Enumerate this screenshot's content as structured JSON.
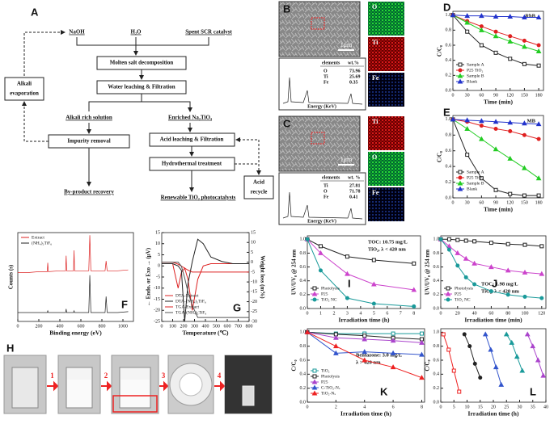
{
  "flowchart": {
    "label": "A",
    "inputs": [
      "NaOH",
      "H₂O",
      "Spent SCR catalyst"
    ],
    "steps": [
      "Molten salt decomposition",
      "Water leaching & Filtration"
    ],
    "branches": [
      "Alkali rich solution",
      "Enriched Na₂TiO₃"
    ],
    "left_steps": [
      "Impurity removal"
    ],
    "right_steps": [
      "Acid leaching & Filtration",
      "Hydrothermal treatment"
    ],
    "outputs": [
      "By-product recovery",
      "Renewable TiO₂ photocatalysts"
    ],
    "alkali_side": [
      "Alkali",
      "evaporation"
    ],
    "acid_side": [
      "Acid",
      "recycle"
    ]
  },
  "eds": [
    {
      "label": "B",
      "maps": [
        "O",
        "Ti",
        "Fe"
      ],
      "scale": "1μm",
      "header": [
        "elements",
        "wt.%"
      ],
      "rows": [
        [
          "O",
          "73.96"
        ],
        [
          "Ti",
          "25.69"
        ],
        [
          "Fe",
          "0.35"
        ]
      ],
      "axis_label": "Energy (KeV)"
    },
    {
      "label": "C",
      "maps": [
        "Ti",
        "O",
        "Fe"
      ],
      "scale": "1μm",
      "header": [
        "elements",
        "wt. %"
      ],
      "rows": [
        [
          "Ti",
          "27.81"
        ],
        [
          "O",
          "71.78"
        ],
        [
          "Fe",
          "0.41"
        ]
      ],
      "axis_label": "Energy (KeV)"
    }
  ],
  "process": {
    "label": "H",
    "steps": [
      "1",
      "2",
      "3",
      "4"
    ]
  },
  "chart_data": [
    {
      "type": "line",
      "panel": "D",
      "annotations": [
        "RhB"
      ],
      "x": [
        0,
        30,
        60,
        90,
        120,
        150,
        180
      ],
      "xlim": [
        0,
        190
      ],
      "xticks": [
        0,
        30,
        60,
        90,
        120,
        150,
        180
      ],
      "xlabel": "Time (min)",
      "ylabel": "C/C₀",
      "ylim": [
        0,
        1.05
      ],
      "yticks": [
        {
          "value": 0,
          "label": "0.0"
        },
        {
          "value": 0.2,
          "label": "0.2"
        },
        {
          "value": 0.4,
          "label": "0.4"
        },
        {
          "value": 0.6,
          "label": "0.6"
        },
        {
          "value": 0.8,
          "label": "0.8"
        },
        {
          "value": 1,
          "label": "1.0"
        }
      ],
      "legend": "lower-left",
      "series": [
        {
          "name": "Sample A",
          "color": "#222222",
          "marker": "square",
          "values": [
            1,
            0.78,
            0.6,
            0.5,
            0.42,
            0.35,
            0.33
          ]
        },
        {
          "name": "P25 TiO₂",
          "color": "#e02020",
          "marker": "circle",
          "values": [
            1,
            0.92,
            0.85,
            0.78,
            0.72,
            0.66,
            0.6
          ]
        },
        {
          "name": "Sample B",
          "color": "#22cc22",
          "marker": "triangle",
          "values": [
            1,
            0.9,
            0.8,
            0.72,
            0.65,
            0.58,
            0.52
          ]
        },
        {
          "name": "Blank",
          "color": "#2233cc",
          "marker": "triangle",
          "values": [
            1,
            0.99,
            0.99,
            0.98,
            0.98,
            0.97,
            0.97
          ]
        }
      ]
    },
    {
      "type": "line",
      "panel": "E",
      "annotations": [
        "MB"
      ],
      "x": [
        0,
        30,
        60,
        90,
        120,
        150,
        180
      ],
      "xlim": [
        0,
        190
      ],
      "xticks": [
        0,
        30,
        60,
        90,
        120,
        150,
        180
      ],
      "xlabel": "Time (min)",
      "ylabel": "C/C₀",
      "ylim": [
        0,
        1.05
      ],
      "yticks": [
        {
          "value": 0,
          "label": "0.0"
        },
        {
          "value": 0.2,
          "label": "0.2"
        },
        {
          "value": 0.4,
          "label": "0.4"
        },
        {
          "value": 0.6,
          "label": "0.6"
        },
        {
          "value": 0.8,
          "label": "0.8"
        },
        {
          "value": 1,
          "label": "1.0"
        }
      ],
      "legend": "lower-left",
      "series": [
        {
          "name": "Sample A",
          "color": "#222222",
          "marker": "square",
          "values": [
            1,
            0.55,
            0.25,
            0.1,
            0.05,
            0.03,
            0.03
          ]
        },
        {
          "name": "P25 TiO₂",
          "color": "#e02020",
          "marker": "circle",
          "values": [
            1,
            0.97,
            0.92,
            0.88,
            0.85,
            0.8,
            0.75
          ]
        },
        {
          "name": "Sample B",
          "color": "#22cc22",
          "marker": "triangle",
          "values": [
            1,
            0.88,
            0.75,
            0.62,
            0.5,
            0.38,
            0.25
          ]
        },
        {
          "name": "Blank",
          "color": "#2233cc",
          "marker": "triangle",
          "values": [
            1,
            0.99,
            0.98,
            0.97,
            0.96,
            0.95,
            0.94
          ]
        }
      ]
    },
    {
      "type": "line",
      "panel": "F",
      "annotations": [],
      "x": [
        0,
        100,
        200,
        280,
        285,
        290,
        400,
        455,
        460,
        465,
        530,
        535,
        540,
        600,
        675,
        685,
        695,
        800,
        830,
        840,
        850,
        950,
        1050
      ],
      "xlim": [
        0,
        1100
      ],
      "xticks": [
        0,
        200,
        400,
        600,
        800,
        1000
      ],
      "xlabel": "Binding energy (eV)",
      "ylabel": "Counts (s)",
      "ylim": [
        0,
        100
      ],
      "yticks": [],
      "legend": "upper-left",
      "series": [
        {
          "name": "Extract",
          "color": "#dd2222",
          "values": [
            55,
            55,
            56,
            56,
            66,
            56,
            57,
            57,
            74,
            57,
            57,
            80,
            57,
            57,
            57,
            97,
            57,
            57,
            57,
            68,
            57,
            57,
            58
          ]
        },
        {
          "name": "(NH₄)₂TiF₆",
          "color": "#222222",
          "values": [
            10,
            10,
            10,
            10,
            12,
            10,
            10,
            10,
            14,
            10,
            10,
            12,
            10,
            10,
            10,
            52,
            10,
            10,
            10,
            28,
            10,
            10,
            11
          ]
        }
      ]
    },
    {
      "type": "line",
      "panel": "G",
      "annotations": [],
      "x": [
        0,
        100,
        150,
        180,
        210,
        240,
        280,
        330,
        380,
        450,
        550,
        650,
        800
      ],
      "xlim": [
        0,
        800
      ],
      "xticks": [
        0,
        100,
        200,
        300,
        400,
        500,
        600,
        700,
        800
      ],
      "xlabel": "Temperature (℃)",
      "ylabel": "← Endo. or Exo → (μV)",
      "ylim": [
        -25,
        15
      ],
      "yticks": [
        -25,
        -20,
        -15,
        -10,
        -5,
        0,
        5,
        10,
        15
      ],
      "y2label": "Weight loss (m%)",
      "y2lim": [
        -30,
        15
      ],
      "y2ticks": [
        -30,
        -25,
        -20,
        -15,
        -10,
        -5,
        0,
        5,
        10,
        15
      ],
      "legend": "lower-left",
      "series": [
        {
          "name": "DTA-Extract",
          "color": "#dd2222",
          "values": [
            1,
            1,
            -10,
            -3,
            -1,
            -6,
            -20,
            -6,
            0,
            1,
            1,
            1,
            1
          ]
        },
        {
          "name": "DTA-(NH₄)₂TiF₆",
          "color": "#222222",
          "values": [
            1,
            1,
            0,
            -2,
            -25,
            -8,
            2,
            12,
            10,
            4,
            2,
            1,
            1
          ]
        },
        {
          "name": "TGA-Extract",
          "color": "#dd2222",
          "axis": "y2",
          "values": [
            0,
            0,
            -1,
            -2,
            -3,
            -4,
            -5,
            -5,
            -5,
            -5,
            -5,
            -5,
            -5
          ]
        },
        {
          "name": "TGA-(NH₄)₂TiF₆",
          "color": "#555555",
          "axis": "y2",
          "values": [
            0,
            0,
            0,
            -2,
            -8,
            -15,
            -22,
            -28,
            -28,
            -28,
            -28,
            -28,
            -28
          ]
        }
      ]
    },
    {
      "type": "line",
      "panel": "I",
      "annotations": [
        "TOC: 10.75 mg/L",
        "TiO₂, λ < 420 nm"
      ],
      "x": [
        0,
        1,
        3,
        5,
        8
      ],
      "xlim": [
        0,
        8.5
      ],
      "xticks": [
        0,
        1,
        2,
        3,
        4,
        5,
        6,
        7,
        8
      ],
      "xlabel": "Irradiation time (h)",
      "ylabel": "UV/UV₀ @ 254 nm",
      "ylim": [
        0,
        1.05
      ],
      "yticks": [
        {
          "value": 0,
          "label": "0.0"
        },
        {
          "value": 0.2,
          "label": "0.2"
        },
        {
          "value": 0.4,
          "label": "0.4"
        },
        {
          "value": 0.6,
          "label": "0.6"
        },
        {
          "value": 0.8,
          "label": "0.8"
        },
        {
          "value": 1,
          "label": "1.0"
        }
      ],
      "legend": "lower-left",
      "series": [
        {
          "name": "Photolysis",
          "color": "#222222",
          "marker": "square",
          "values": [
            1,
            0.9,
            0.75,
            0.7,
            0.65
          ]
        },
        {
          "name": "P25",
          "color": "#cc44cc",
          "marker": "triangle",
          "values": [
            1,
            0.8,
            0.5,
            0.35,
            0.27
          ]
        },
        {
          "name": "TiO₂ NC",
          "color": "#1a9a9a",
          "marker": "circle",
          "values": [
            1,
            0.55,
            0.15,
            0.07,
            0.03
          ]
        }
      ]
    },
    {
      "type": "line",
      "panel": "J",
      "annotations": [
        "TOC: 1.98 mg/L",
        "TiO₂, λ < 420 nm"
      ],
      "x": [
        0,
        10,
        20,
        30,
        40,
        60,
        80,
        100,
        120
      ],
      "xlim": [
        0,
        125
      ],
      "xticks": [
        0,
        20,
        40,
        60,
        80,
        100,
        120
      ],
      "xlabel": "Irradiation time (min)",
      "ylabel": "UV/UV₀ @ 254 nm",
      "ylim": [
        0,
        1.05
      ],
      "yticks": [
        {
          "value": 0,
          "label": "0.0"
        },
        {
          "value": 0.2,
          "label": "0.2"
        },
        {
          "value": 0.4,
          "label": "0.4"
        },
        {
          "value": 0.6,
          "label": "0.6"
        },
        {
          "value": 0.8,
          "label": "0.8"
        },
        {
          "value": 1,
          "label": "1.0"
        }
      ],
      "legend": "lower-left",
      "series": [
        {
          "name": "Photolysis",
          "color": "#222222",
          "marker": "square",
          "values": [
            1,
            1,
            0.99,
            0.98,
            0.97,
            0.95,
            0.93,
            0.92,
            0.9
          ]
        },
        {
          "name": "P25",
          "color": "#cc44cc",
          "marker": "triangle",
          "values": [
            1,
            0.9,
            0.8,
            0.72,
            0.65,
            0.6,
            0.55,
            0.52,
            0.5
          ]
        },
        {
          "name": "TiO₂ NC",
          "color": "#1a9a9a",
          "marker": "circle",
          "values": [
            1,
            0.85,
            0.62,
            0.45,
            0.35,
            0.25,
            0.2,
            0.17,
            0.15
          ]
        }
      ]
    },
    {
      "type": "line",
      "panel": "K",
      "annotations": [
        "Bentazone: 3.0 mg/L",
        "λ > 420 nm"
      ],
      "x": [
        0,
        2,
        4,
        6,
        8
      ],
      "xlim": [
        0,
        8.2
      ],
      "xticks": [
        0,
        2,
        4,
        6,
        8
      ],
      "xlabel": "Irradiation time (h)",
      "ylabel": "C/C₀",
      "ylim": [
        0,
        1.05
      ],
      "yticks": [
        {
          "value": 0,
          "label": "0.0"
        },
        {
          "value": 0.2,
          "label": "0.2"
        },
        {
          "value": 0.4,
          "label": "0.4"
        },
        {
          "value": 0.6,
          "label": "0.6"
        },
        {
          "value": 0.8,
          "label": "0.8"
        },
        {
          "value": 1,
          "label": "1.0"
        }
      ],
      "legend": "lower-left",
      "series": [
        {
          "name": "TiO₂",
          "color": "#1a9a9a",
          "marker": "square",
          "values": [
            1,
            0.98,
            0.98,
            0.98,
            0.98
          ]
        },
        {
          "name": "Photolysis",
          "color": "#222222",
          "marker": "square",
          "values": [
            1,
            0.97,
            0.95,
            0.92,
            0.9
          ]
        },
        {
          "name": "P25",
          "color": "#aa44cc",
          "marker": "triangle",
          "values": [
            1,
            0.92,
            0.9,
            0.88,
            0.85
          ]
        },
        {
          "name": "C-TiO₂-Nₓ",
          "color": "#3355cc",
          "marker": "triangle",
          "values": [
            1,
            0.7,
            0.72,
            0.7,
            0.68
          ]
        },
        {
          "name": "TiO₂-Nₓ",
          "color": "#ee2222",
          "marker": "triangle",
          "values": [
            1,
            0.8,
            0.6,
            0.5,
            0.35
          ]
        }
      ]
    },
    {
      "type": "line",
      "panel": "L",
      "annotations": [],
      "xlim": [
        0,
        40
      ],
      "xticks": [
        0,
        5,
        10,
        15,
        20,
        25,
        30,
        35,
        40
      ],
      "xlabel": "Irradiation time (h)",
      "ylabel": "C/C₀",
      "ylim": [
        0,
        1.05
      ],
      "yticks": [
        {
          "value": 0,
          "label": "0.0"
        },
        {
          "value": 0.2,
          "label": "0.2"
        },
        {
          "value": 0.4,
          "label": "0.4"
        },
        {
          "value": 0.6,
          "label": "0.6"
        },
        {
          "value": 0.8,
          "label": "0.8"
        },
        {
          "value": 1,
          "label": "1.0"
        }
      ],
      "series": [
        {
          "color": "#ee2222",
          "marker": "square",
          "x": [
            1,
            3,
            5,
            7
          ],
          "values": [
            0.97,
            0.75,
            0.45,
            0.15
          ]
        },
        {
          "color": "#222222",
          "marker": "circle",
          "x": [
            9,
            11,
            13,
            15
          ],
          "values": [
            0.97,
            0.8,
            0.55,
            0.35
          ]
        },
        {
          "color": "#3355cc",
          "marker": "triangle",
          "x": [
            17,
            19,
            21,
            23
          ],
          "values": [
            0.97,
            0.75,
            0.5,
            0.25
          ]
        },
        {
          "color": "#1a9a9a",
          "marker": "triangle",
          "x": [
            25,
            27,
            29,
            31
          ],
          "values": [
            0.97,
            0.85,
            0.65,
            0.45
          ]
        },
        {
          "color": "#aa44cc",
          "marker": "triangle",
          "x": [
            33,
            35,
            37,
            39
          ],
          "values": [
            0.97,
            0.8,
            0.6,
            0.38
          ]
        }
      ]
    }
  ]
}
